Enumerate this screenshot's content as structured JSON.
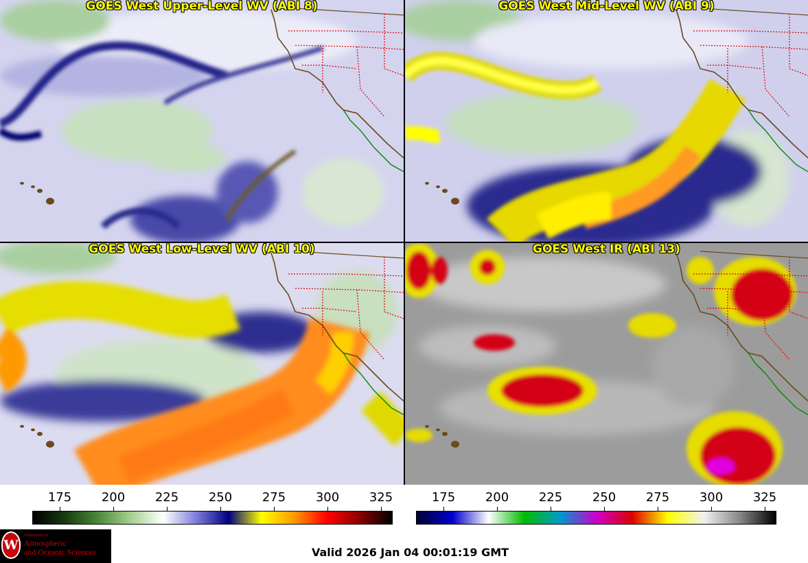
{
  "panels": [
    {
      "title": "GOES West Upper-Level WV (ABI 8)",
      "band": 8,
      "product": "water-vapor"
    },
    {
      "title": "GOES West Mid-Level WV (ABI 9)",
      "band": 9,
      "product": "water-vapor"
    },
    {
      "title": "GOES West Low-Level WV (ABI 10)",
      "band": 10,
      "product": "water-vapor"
    },
    {
      "title": "GOES West IR (ABI 13)",
      "band": 13,
      "product": "infrared"
    }
  ],
  "colorbars": {
    "wv": {
      "ticks": [
        "175",
        "200",
        "225",
        "250",
        "275",
        "300",
        "325"
      ],
      "colors": [
        "#000000",
        "#1a3a12",
        "#4b8a3a",
        "#a6d18f",
        "#ffffff",
        "#7d7ddb",
        "#000080",
        "#ffff00",
        "#ff9900",
        "#ff0000",
        "#8b0000",
        "#000000"
      ]
    },
    "ir": {
      "ticks": [
        "175",
        "200",
        "225",
        "250",
        "275",
        "300",
        "325"
      ],
      "colors": [
        "#000033",
        "#0000cc",
        "#ffffff",
        "#00bb00",
        "#0099cc",
        "#cc00cc",
        "#dd0000",
        "#ffff00",
        "#f0f0f0",
        "#888888",
        "#000000"
      ]
    }
  },
  "logo": {
    "department": "Department of",
    "line1": "Atmospheric",
    "line2": "and Oceanic Sciences",
    "seal_letter": "W",
    "seal_color": "#c5050c"
  },
  "valid_time": "Valid 2026 Jan 04 00:01:19 GMT"
}
